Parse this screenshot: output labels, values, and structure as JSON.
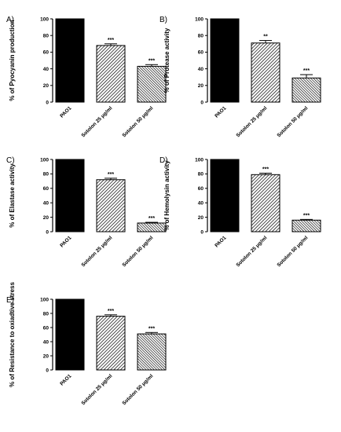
{
  "chart_data": [
    {
      "type": "bar",
      "panel": "A)",
      "ylabel": "% of Pyocyanin production",
      "categories": [
        "PAO1",
        "Sotolon 25 μg/ml",
        "Sotolon 50 μg/ml"
      ],
      "values": [
        100,
        68,
        43
      ],
      "errors": [
        0,
        2,
        2
      ],
      "significance": [
        "",
        "***",
        "***"
      ],
      "ylim": [
        0,
        100
      ],
      "yticks": [
        "0",
        "20",
        "40",
        "60",
        "80",
        "100"
      ],
      "fills": [
        "solid",
        "diagonal-hatch",
        "dense-hatch"
      ]
    },
    {
      "type": "bar",
      "panel": "B)",
      "ylabel": "% of Protease activity",
      "categories": [
        "PAO1",
        "Sotolon 25 μg/ml",
        "Sotolon 50 μg/ml"
      ],
      "values": [
        100,
        71,
        29
      ],
      "errors": [
        0,
        3,
        4
      ],
      "significance": [
        "",
        "**",
        "***"
      ],
      "ylim": [
        0,
        100
      ],
      "yticks": [
        "0",
        "20",
        "40",
        "60",
        "80",
        "100"
      ],
      "fills": [
        "solid",
        "diagonal-hatch",
        "dense-hatch"
      ]
    },
    {
      "type": "bar",
      "panel": "C)",
      "ylabel": "% of Elastase activity",
      "categories": [
        "PAO1",
        "Sotolon 25 μg/ml",
        "Sotolon 50 μg/ml"
      ],
      "values": [
        100,
        72,
        12
      ],
      "errors": [
        0,
        2,
        1
      ],
      "significance": [
        "",
        "***",
        "***"
      ],
      "ylim": [
        0,
        100
      ],
      "yticks": [
        "0",
        "20",
        "40",
        "60",
        "80",
        "100"
      ],
      "fills": [
        "solid",
        "diagonal-hatch",
        "dense-hatch"
      ]
    },
    {
      "type": "bar",
      "panel": "D)",
      "ylabel": "% of Hemolysin activity",
      "categories": [
        "PAO1",
        "Sotolon 25 μg/ml",
        "Sotolon 50 μg/ml"
      ],
      "values": [
        100,
        79,
        16
      ],
      "errors": [
        0,
        2,
        1
      ],
      "significance": [
        "",
        "***",
        "***"
      ],
      "ylim": [
        0,
        100
      ],
      "yticks": [
        "0",
        "20",
        "40",
        "60",
        "80",
        "100"
      ],
      "fills": [
        "solid",
        "diagonal-hatch",
        "dense-hatch"
      ]
    },
    {
      "type": "bar",
      "panel": "E)",
      "ylabel": "% of Resistance to oxiadtive stress",
      "categories": [
        "PAO1",
        "Sotolon 25 μg/ml",
        "Sotolon 50 μg/ml"
      ],
      "values": [
        100,
        76,
        51
      ],
      "errors": [
        0,
        2,
        2
      ],
      "significance": [
        "",
        "***",
        "***"
      ],
      "ylim": [
        0,
        100
      ],
      "yticks": [
        "0",
        "20",
        "40",
        "60",
        "80",
        "100"
      ],
      "fills": [
        "solid",
        "diagonal-hatch",
        "dense-hatch"
      ]
    }
  ]
}
